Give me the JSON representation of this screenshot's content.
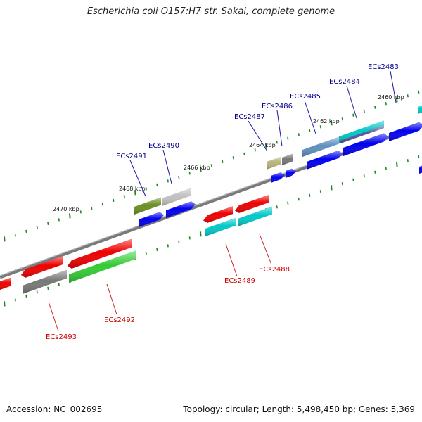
{
  "title": "Escherichia coli O157:H7 str. Sakai, complete genome",
  "footer": {
    "accession": "Accession: NC_002695",
    "summary": "Topology: circular; Length: 5,498,450 bp; Genes: 5,369"
  },
  "diagram": {
    "kbp_labels": [
      "2460 kbp",
      "2462 kbp",
      "2464 kbp",
      "2466 kbp",
      "2468 kbp",
      "2470 kbp"
    ],
    "gene_labels_top": [
      "ECs2483",
      "ECs2484",
      "ECs2485",
      "ECs2486",
      "ECs2487",
      "ECs2490",
      "ECs2491"
    ],
    "gene_labels_bottom": [
      "ECs2488",
      "ECs2489",
      "ECs2492",
      "ECs2493"
    ],
    "colors": {
      "backbone": "#7f7f7f",
      "tick": "#1e8a1e",
      "label_top": "#00008b",
      "label_bottom": "#cc0000",
      "blue": "#0000ee",
      "red": "#ee0000",
      "cyan": "#00c8c8",
      "gray": "#777777",
      "light_gray": "#c0c0c0",
      "olive": "#6b8e23",
      "khaki": "#b8b27a",
      "green": "#33cc33"
    }
  }
}
